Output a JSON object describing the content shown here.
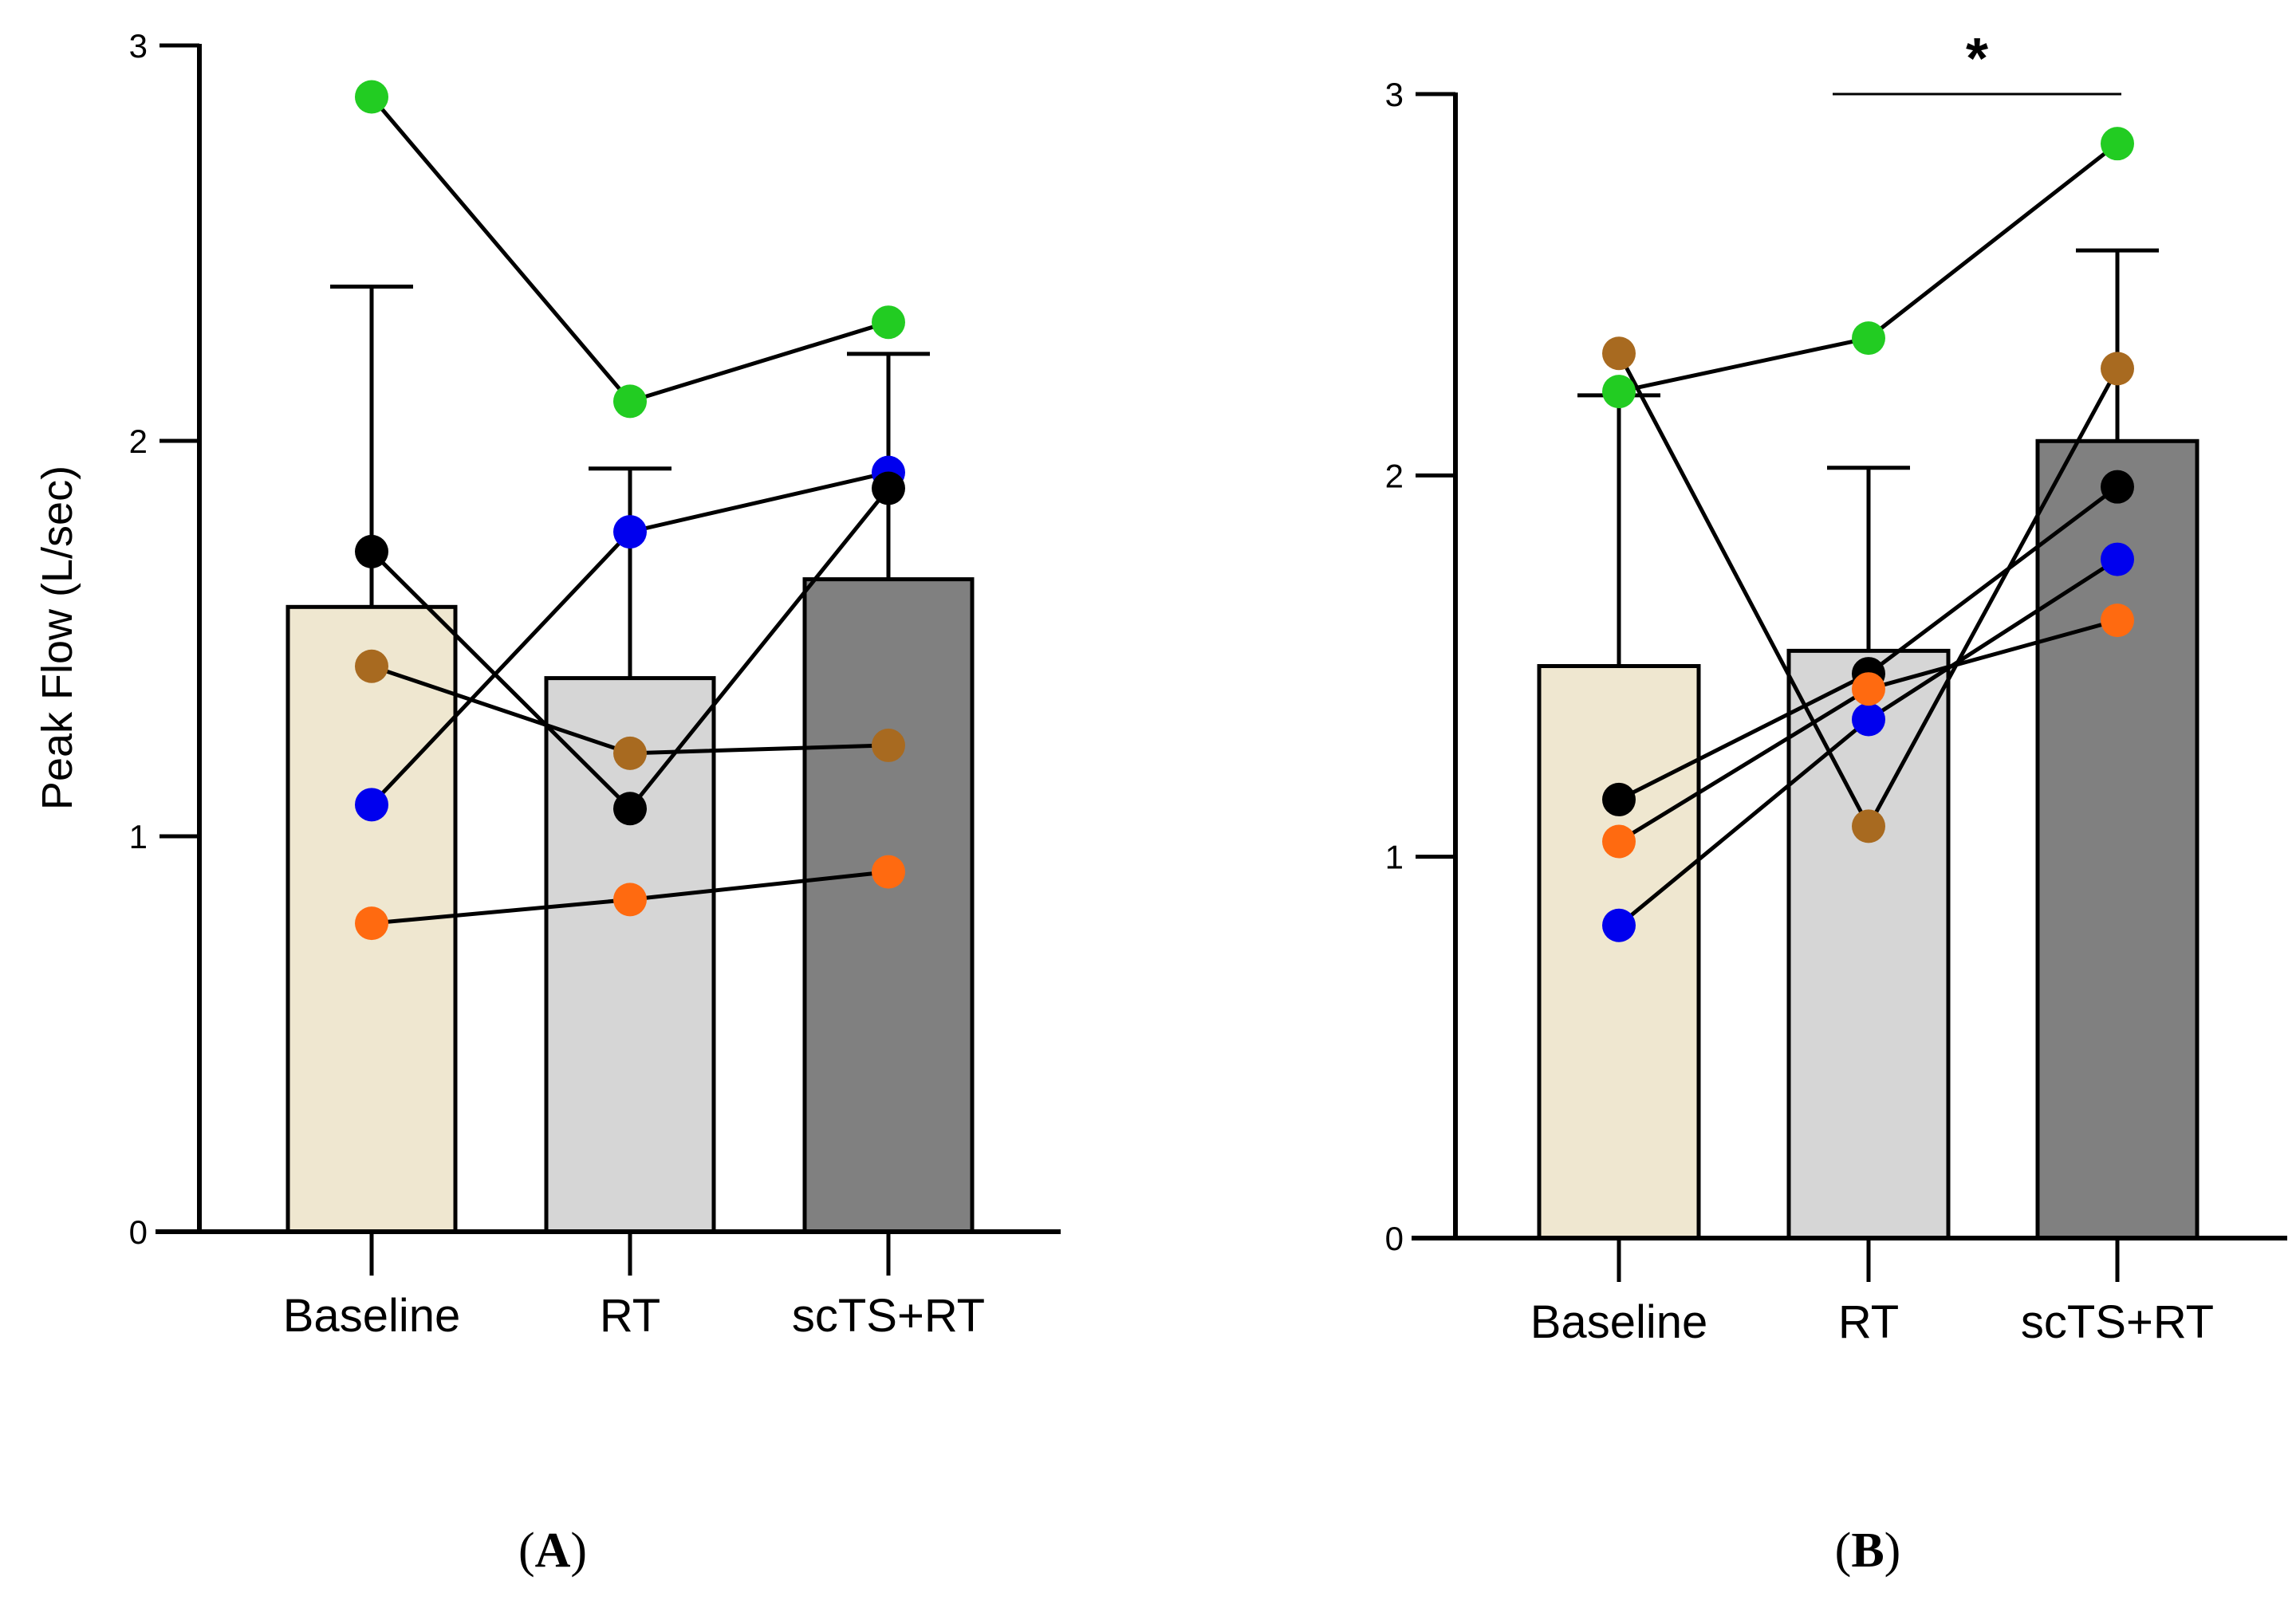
{
  "chart_data": [
    {
      "type": "bar",
      "panel_label": "A",
      "ylabel": "Peak Flow (L/sec)",
      "ylim": [
        0,
        3
      ],
      "yticks": [
        "0",
        "1",
        "2",
        "3"
      ],
      "categories": [
        "Baseline",
        "RT",
        "scTS+RT"
      ],
      "bar_colors": [
        "#efe7d0",
        "#d6d6d6",
        "#808080"
      ],
      "values": [
        1.58,
        1.4,
        1.65
      ],
      "error_upper": [
        2.39,
        1.93,
        2.22
      ],
      "subjects": [
        {
          "color": "#22cc22",
          "values": [
            2.87,
            2.1,
            2.3
          ]
        },
        {
          "color": "#0000ee",
          "values": [
            1.08,
            1.77,
            1.92
          ]
        },
        {
          "color": "#000000",
          "values": [
            1.72,
            1.07,
            1.88
          ]
        },
        {
          "color": "#a86a20",
          "values": [
            1.43,
            1.21,
            1.23
          ]
        },
        {
          "color": "#ff6a10",
          "values": [
            0.78,
            0.84,
            0.91
          ]
        }
      ],
      "significance": null
    },
    {
      "type": "bar",
      "panel_label": "B",
      "ylabel": "",
      "ylim": [
        0,
        3
      ],
      "yticks": [
        "0",
        "1",
        "2",
        "3"
      ],
      "categories": [
        "Baseline",
        "RT",
        "scTS+RT"
      ],
      "bar_colors": [
        "#efe7d0",
        "#d6d6d6",
        "#808080"
      ],
      "values": [
        1.5,
        1.54,
        2.09
      ],
      "error_upper": [
        2.21,
        2.02,
        2.59
      ],
      "subjects": [
        {
          "color": "#22cc22",
          "values": [
            2.22,
            2.36,
            2.87
          ]
        },
        {
          "color": "#a86a20",
          "values": [
            2.32,
            1.08,
            2.28
          ]
        },
        {
          "color": "#000000",
          "values": [
            1.15,
            1.48,
            1.97
          ]
        },
        {
          "color": "#0000ee",
          "values": [
            0.82,
            1.36,
            1.78
          ]
        },
        {
          "color": "#ff6a10",
          "values": [
            1.04,
            1.44,
            1.62
          ]
        }
      ],
      "significance": {
        "from": 1,
        "to": 2,
        "y": 3.0,
        "label": "*"
      }
    }
  ]
}
